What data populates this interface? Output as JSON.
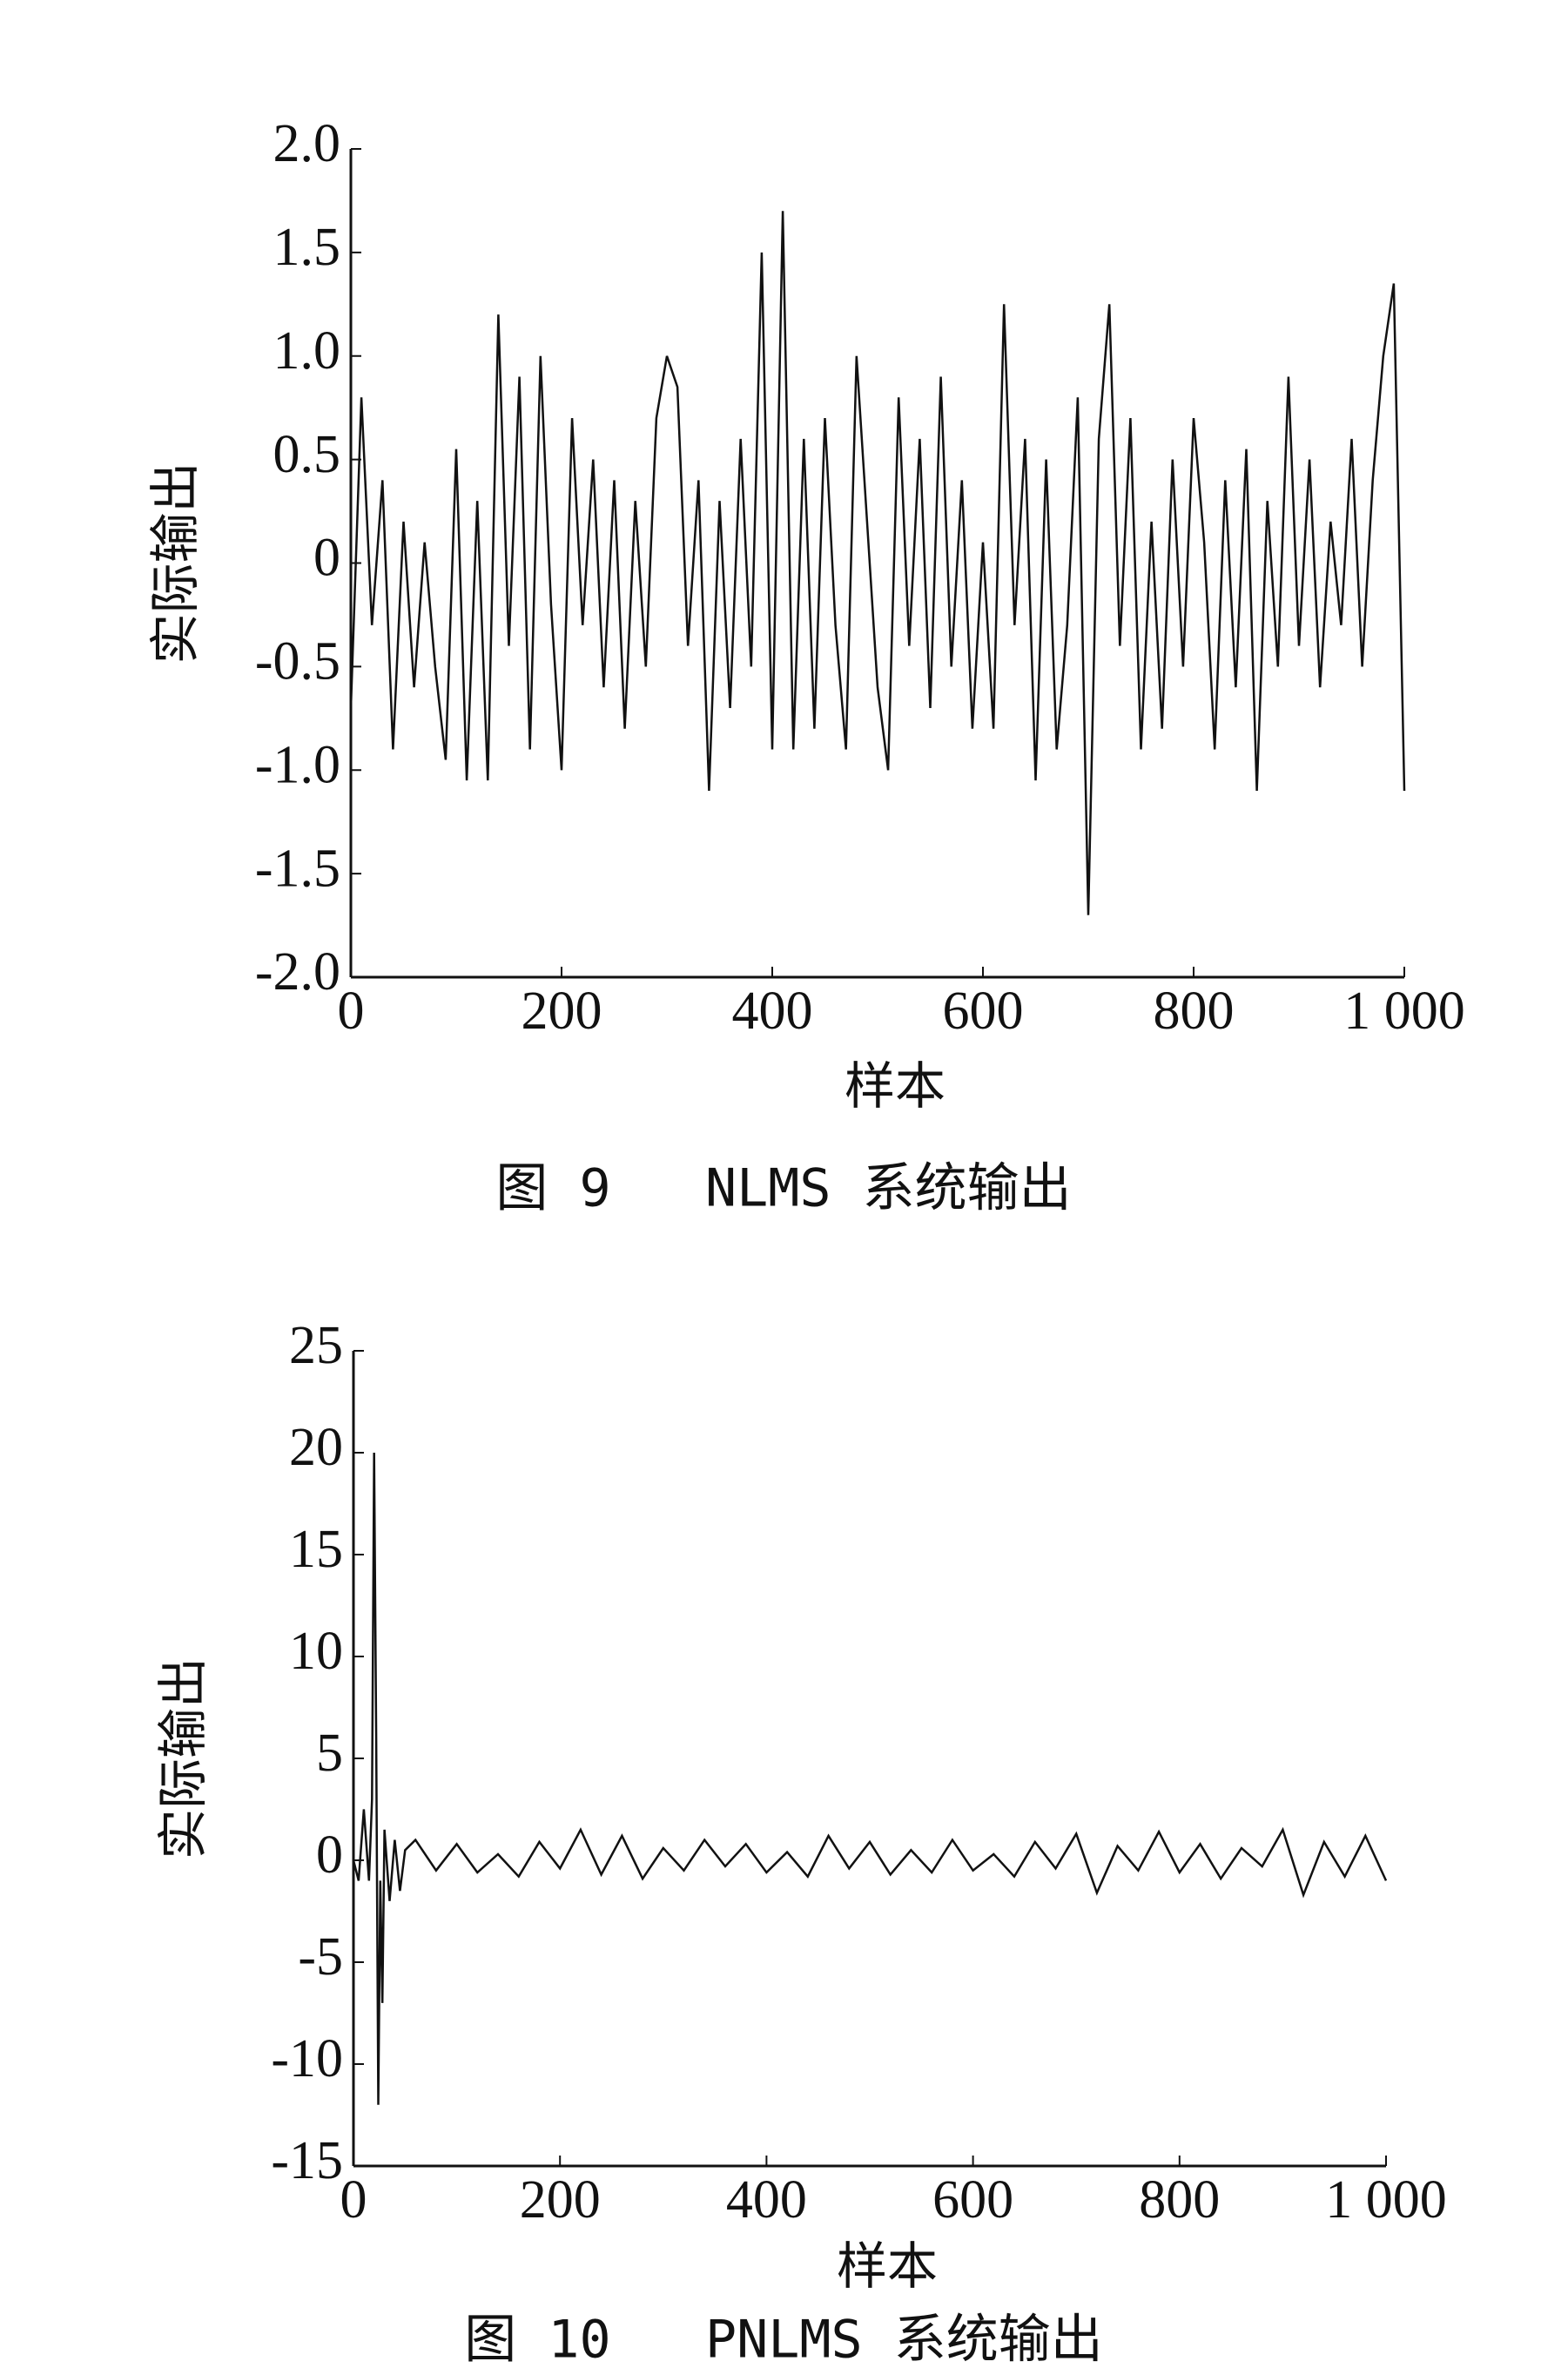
{
  "chart_data": [
    {
      "type": "line",
      "title": "图 9   NLMS 系统输出",
      "xlabel": "样本",
      "ylabel": "实际输出",
      "x": [
        0,
        10,
        20,
        30,
        40,
        50,
        60,
        70,
        80,
        90,
        100,
        110,
        120,
        130,
        140,
        150,
        160,
        170,
        180,
        190,
        200,
        210,
        220,
        230,
        240,
        250,
        260,
        270,
        280,
        290,
        300,
        310,
        320,
        330,
        340,
        350,
        360,
        370,
        380,
        390,
        400,
        410,
        420,
        430,
        440,
        450,
        460,
        470,
        480,
        490,
        500,
        510,
        520,
        530,
        540,
        550,
        560,
        570,
        580,
        590,
        600,
        610,
        620,
        630,
        640,
        650,
        660,
        670,
        680,
        690,
        700,
        710,
        720,
        730,
        740,
        750,
        760,
        770,
        780,
        790,
        800,
        810,
        820,
        830,
        840,
        850,
        860,
        870,
        880,
        890,
        900,
        910,
        920,
        930,
        940,
        950,
        960,
        970,
        980,
        990,
        1000
      ],
      "series": [
        {
          "color": "#111111",
          "values": [
            -0.7,
            0.8,
            -0.3,
            0.4,
            -0.9,
            0.2,
            -0.6,
            0.1,
            -0.5,
            -0.95,
            0.55,
            -1.05,
            0.3,
            -1.05,
            1.2,
            -0.4,
            0.9,
            -0.9,
            1.0,
            -0.2,
            -1.0,
            0.7,
            -0.3,
            0.5,
            -0.6,
            0.4,
            -0.8,
            0.3,
            -0.5,
            0.7,
            1.0,
            0.85,
            -0.4,
            0.4,
            -1.1,
            0.3,
            -0.7,
            0.6,
            -0.5,
            1.5,
            -0.9,
            1.7,
            -0.9,
            0.6,
            -0.8,
            0.7,
            -0.3,
            -0.9,
            1.0,
            0.2,
            -0.6,
            -1.0,
            0.8,
            -0.4,
            0.6,
            -0.7,
            0.9,
            -0.5,
            0.4,
            -0.8,
            0.1,
            -0.8,
            1.25,
            -0.3,
            0.6,
            -1.05,
            0.5,
            -0.9,
            -0.3,
            0.8,
            -1.7,
            0.6,
            1.25,
            -0.4,
            0.7,
            -0.9,
            0.2,
            -0.8,
            0.5,
            -0.5,
            0.7,
            0.1,
            -0.9,
            0.4,
            -0.6,
            0.55,
            -1.1,
            0.3,
            -0.5,
            0.9,
            -0.4,
            0.5,
            -0.6,
            0.2,
            -0.3,
            0.6,
            -0.5,
            0.4,
            1.0,
            1.35,
            -1.1
          ]
        }
      ],
      "xlim": [
        0,
        1000
      ],
      "xticks": [
        0,
        200,
        400,
        600,
        800,
        {
          "value": 1000,
          "label": "1 000"
        }
      ],
      "ylim": [
        -2,
        2
      ],
      "yticks": [
        {
          "value": 2,
          "label": "2.0"
        },
        1.5,
        {
          "value": 1,
          "label": "1.0"
        },
        0.5,
        0,
        -0.5,
        {
          "value": -1,
          "label": "-1.0"
        },
        -1.5,
        {
          "value": -2,
          "label": "-2.0"
        }
      ]
    },
    {
      "type": "line",
      "title": "图 10   PNLMS 系统输出",
      "xlabel": "样本",
      "ylabel": "实际输出",
      "x": [
        0,
        5,
        10,
        15,
        18,
        20,
        22,
        24,
        26,
        28,
        30,
        35,
        40,
        45,
        50,
        60,
        80,
        100,
        120,
        140,
        160,
        180,
        200,
        220,
        240,
        260,
        280,
        300,
        320,
        340,
        360,
        380,
        400,
        420,
        440,
        460,
        480,
        500,
        520,
        540,
        560,
        580,
        600,
        620,
        640,
        660,
        680,
        700,
        720,
        740,
        760,
        780,
        800,
        820,
        840,
        860,
        880,
        900,
        920,
        940,
        960,
        980,
        1000
      ],
      "series": [
        {
          "color": "#111111",
          "values": [
            0,
            -1,
            2.5,
            -1,
            3,
            20,
            6,
            -12,
            -1,
            -7,
            1.5,
            -2,
            1,
            -1.5,
            0.5,
            1,
            -0.5,
            0.8,
            -0.6,
            0.3,
            -0.8,
            0.9,
            -0.4,
            1.5,
            -0.7,
            1.2,
            -0.9,
            0.6,
            -0.5,
            1.0,
            -0.3,
            0.8,
            -0.6,
            0.4,
            -0.8,
            1.2,
            -0.4,
            0.9,
            -0.7,
            0.5,
            -0.6,
            1.0,
            -0.5,
            0.3,
            -0.8,
            0.9,
            -0.4,
            1.3,
            -1.6,
            0.7,
            -0.5,
            1.4,
            -0.6,
            0.8,
            -0.9,
            0.6,
            -0.3,
            1.5,
            -1.7,
            0.9,
            -0.8,
            1.2,
            -1.0
          ]
        }
      ],
      "xlim": [
        0,
        1000
      ],
      "xticks": [
        0,
        200,
        400,
        600,
        800,
        {
          "value": 1000,
          "label": "1 000"
        }
      ],
      "ylim": [
        -15,
        25
      ],
      "yticks": [
        25,
        20,
        15,
        10,
        5,
        0,
        -5,
        -10,
        -15
      ]
    }
  ]
}
